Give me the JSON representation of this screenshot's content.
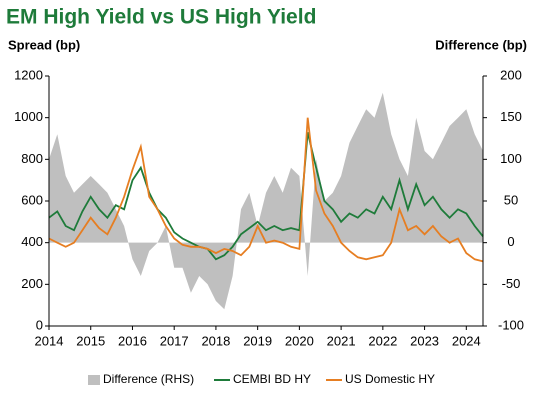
{
  "chart_data": {
    "type": "line",
    "title": "EM High Yield vs US High Yield",
    "y_label": "Spread (bp)",
    "y2_label": "Difference (bp)",
    "x": [
      2014.0,
      2014.2,
      2014.4,
      2014.6,
      2014.8,
      2015.0,
      2015.2,
      2015.4,
      2015.6,
      2015.8,
      2016.0,
      2016.2,
      2016.4,
      2016.6,
      2016.8,
      2017.0,
      2017.2,
      2017.4,
      2017.6,
      2017.8,
      2018.0,
      2018.2,
      2018.4,
      2018.6,
      2018.8,
      2019.0,
      2019.2,
      2019.4,
      2019.6,
      2019.8,
      2020.0,
      2020.2,
      2020.4,
      2020.6,
      2020.8,
      2021.0,
      2021.2,
      2021.4,
      2021.6,
      2021.8,
      2022.0,
      2022.2,
      2022.4,
      2022.6,
      2022.8,
      2023.0,
      2023.2,
      2023.4,
      2023.6,
      2023.8,
      2024.0,
      2024.2,
      2024.4
    ],
    "xlim": [
      2014,
      2024.4
    ],
    "xticks": [
      2014,
      2015,
      2016,
      2017,
      2018,
      2019,
      2020,
      2021,
      2022,
      2023,
      2024
    ],
    "ylim": [
      0,
      1200
    ],
    "yticks": [
      0,
      200,
      400,
      600,
      800,
      1000,
      1200
    ],
    "y2lim": [
      -100,
      200
    ],
    "y2ticks": [
      -100,
      -50,
      0,
      50,
      100,
      150,
      200
    ],
    "series": [
      {
        "name": "Difference (RHS)",
        "style": "area",
        "axis": "y2",
        "color": "#bfbfbf",
        "values": [
          100,
          130,
          80,
          60,
          70,
          80,
          70,
          60,
          40,
          20,
          -20,
          -40,
          -10,
          0,
          20,
          -30,
          -30,
          -60,
          -40,
          -50,
          -70,
          -80,
          -40,
          40,
          60,
          20,
          60,
          80,
          60,
          90,
          80,
          -40,
          100,
          50,
          60,
          80,
          120,
          140,
          160,
          150,
          180,
          130,
          100,
          80,
          150,
          110,
          100,
          120,
          140,
          150,
          160,
          130,
          110
        ]
      },
      {
        "name": "CEMBI BD HY",
        "style": "line",
        "color": "#1e7b3a",
        "values": [
          520,
          550,
          480,
          460,
          550,
          620,
          560,
          520,
          580,
          560,
          700,
          760,
          640,
          560,
          520,
          450,
          420,
          400,
          380,
          370,
          320,
          340,
          380,
          440,
          470,
          500,
          460,
          480,
          460,
          470,
          460,
          930,
          760,
          600,
          560,
          500,
          540,
          520,
          560,
          540,
          620,
          560,
          700,
          560,
          680,
          580,
          620,
          560,
          520,
          560,
          540,
          480,
          430
        ]
      },
      {
        "name": "US Domestic HY",
        "style": "line",
        "color": "#e67e22",
        "values": [
          420,
          400,
          380,
          400,
          460,
          520,
          470,
          440,
          520,
          620,
          750,
          860,
          620,
          560,
          480,
          420,
          390,
          380,
          380,
          370,
          350,
          370,
          360,
          340,
          380,
          480,
          400,
          410,
          400,
          380,
          370,
          1000,
          650,
          540,
          480,
          400,
          360,
          330,
          320,
          330,
          340,
          400,
          560,
          460,
          480,
          440,
          480,
          430,
          400,
          420,
          350,
          320,
          310
        ]
      }
    ]
  }
}
